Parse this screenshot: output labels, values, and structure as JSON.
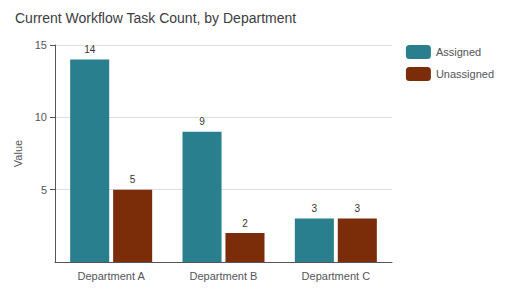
{
  "chart_data": {
    "type": "bar",
    "title": "Current Workflow Task Count, by Department",
    "categories": [
      "Department A",
      "Department B",
      "Department C"
    ],
    "series": [
      {
        "name": "Assigned",
        "color": "#2a7f8f",
        "values": [
          14,
          9,
          3
        ]
      },
      {
        "name": "Unassigned",
        "color": "#7b2d0a",
        "values": [
          5,
          2,
          3
        ]
      }
    ],
    "ylabel": "Value",
    "ylim": [
      0,
      15.0
    ],
    "yticks": [
      5.0,
      10.0,
      15.0
    ],
    "grid": true,
    "legend": "upper right",
    "data_labels": true
  }
}
